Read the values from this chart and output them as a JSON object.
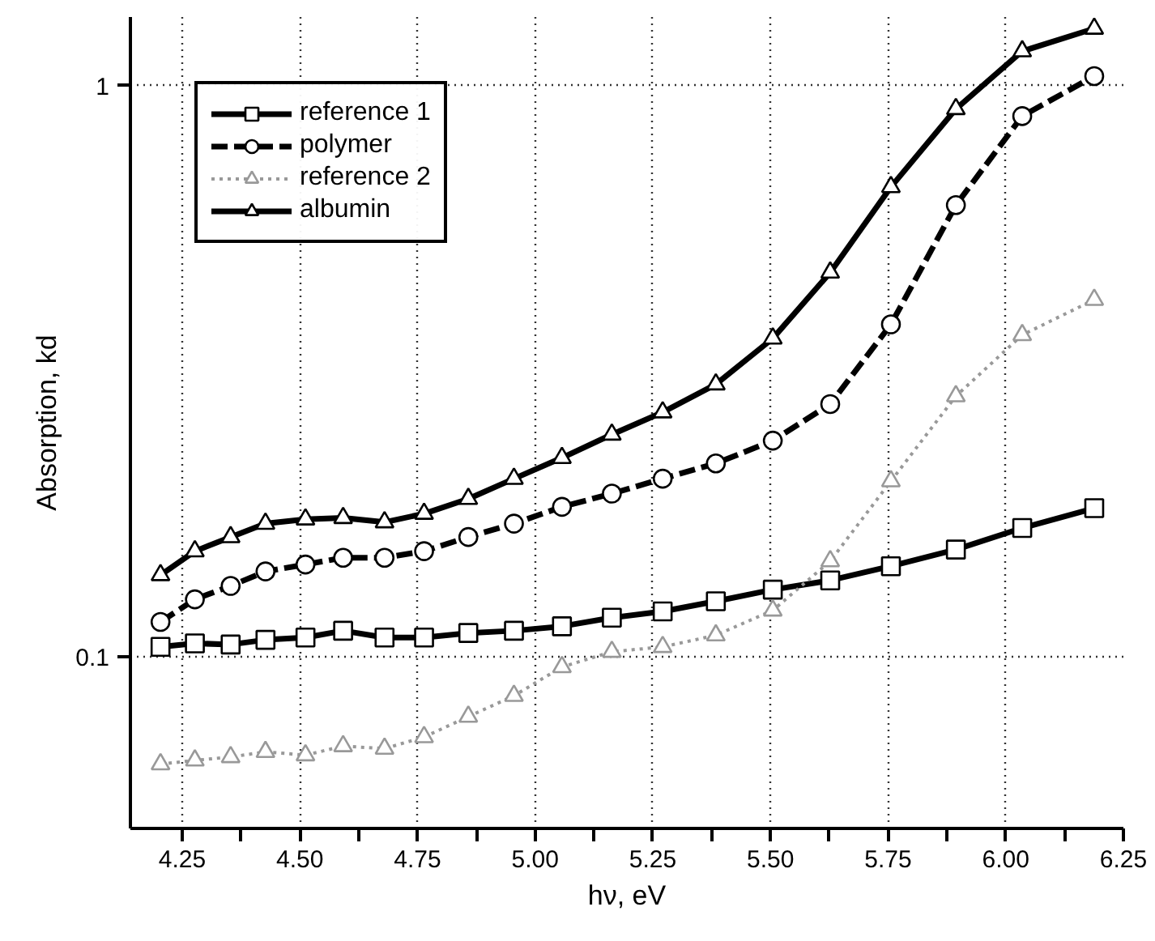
{
  "chart_data": {
    "type": "line",
    "xlabel": "hν, eV",
    "ylabel": "Absorption, kd",
    "xlim": [
      4.14,
      6.25
    ],
    "ylim": [
      0.05,
      1.32
    ],
    "log": "y",
    "grid": true,
    "legend": "top left",
    "xticks": [
      {
        "value": 4.25,
        "label": "4.25"
      },
      {
        "value": 4.375,
        "label": null
      },
      {
        "value": 4.5,
        "label": "4.50"
      },
      {
        "value": 4.625,
        "label": null
      },
      {
        "value": 4.75,
        "label": "4.75"
      },
      {
        "value": 4.875,
        "label": null
      },
      {
        "value": 5.0,
        "label": "5.00"
      },
      {
        "value": 5.125,
        "label": null
      },
      {
        "value": 5.25,
        "label": "5.25"
      },
      {
        "value": 5.375,
        "label": null
      },
      {
        "value": 5.5,
        "label": "5.50"
      },
      {
        "value": 5.625,
        "label": null
      },
      {
        "value": 5.75,
        "label": "5.75"
      },
      {
        "value": 5.875,
        "label": null
      },
      {
        "value": 6.0,
        "label": "6.00"
      },
      {
        "value": 6.125,
        "label": null
      },
      {
        "value": 6.25,
        "label": "6.25"
      }
    ],
    "yticks": [
      0.1,
      1
    ],
    "series": [
      {
        "name": "reference 1",
        "color": "#000000",
        "marker": "square",
        "line_style": "solid",
        "x": [
          4.204,
          4.277,
          4.353,
          4.427,
          4.512,
          4.592,
          4.68,
          4.764,
          4.858,
          4.955,
          5.057,
          5.163,
          5.271,
          5.384,
          5.505,
          5.627,
          5.756,
          5.894,
          6.035,
          6.188
        ],
        "values": [
          0.104,
          0.1055,
          0.105,
          0.107,
          0.108,
          0.111,
          0.108,
          0.108,
          0.11,
          0.111,
          0.113,
          0.117,
          0.12,
          0.125,
          0.131,
          0.136,
          0.144,
          0.154,
          0.168,
          0.182
        ]
      },
      {
        "name": "polymer",
        "color": "#000000",
        "marker": "circle",
        "line_style": "dashed",
        "x": [
          4.204,
          4.277,
          4.353,
          4.427,
          4.512,
          4.592,
          4.68,
          4.764,
          4.858,
          4.955,
          5.057,
          5.163,
          5.271,
          5.384,
          5.505,
          5.627,
          5.756,
          5.894,
          6.035,
          6.188
        ],
        "values": [
          0.115,
          0.126,
          0.133,
          0.141,
          0.145,
          0.149,
          0.149,
          0.153,
          0.162,
          0.171,
          0.183,
          0.193,
          0.205,
          0.218,
          0.239,
          0.277,
          0.382,
          0.618,
          0.885,
          1.04
        ]
      },
      {
        "name": "reference 2",
        "color": "#999999",
        "marker": "triangle",
        "line_style": "dotted",
        "x": [
          4.204,
          4.277,
          4.353,
          4.427,
          4.512,
          4.592,
          4.68,
          4.764,
          4.858,
          4.955,
          5.057,
          5.163,
          5.271,
          5.384,
          5.505,
          5.627,
          5.756,
          5.894,
          6.035,
          6.188
        ],
        "values": [
          0.0648,
          0.0658,
          0.0667,
          0.0681,
          0.0672,
          0.0697,
          0.069,
          0.0723,
          0.0785,
          0.0854,
          0.0959,
          0.102,
          0.104,
          0.109,
          0.1205,
          0.147,
          0.203,
          0.286,
          0.366,
          0.422
        ]
      },
      {
        "name": "albumin",
        "color": "#000000",
        "marker": "triangle",
        "line_style": "solid",
        "x": [
          4.204,
          4.277,
          4.353,
          4.427,
          4.512,
          4.592,
          4.68,
          4.764,
          4.858,
          4.955,
          5.057,
          5.163,
          5.271,
          5.384,
          5.505,
          5.627,
          5.756,
          5.894,
          6.035,
          6.188
        ],
        "values": [
          0.139,
          0.153,
          0.162,
          0.171,
          0.174,
          0.175,
          0.172,
          0.178,
          0.189,
          0.205,
          0.223,
          0.245,
          0.268,
          0.3,
          0.361,
          0.471,
          0.665,
          0.911,
          1.15,
          1.26
        ]
      }
    ]
  }
}
